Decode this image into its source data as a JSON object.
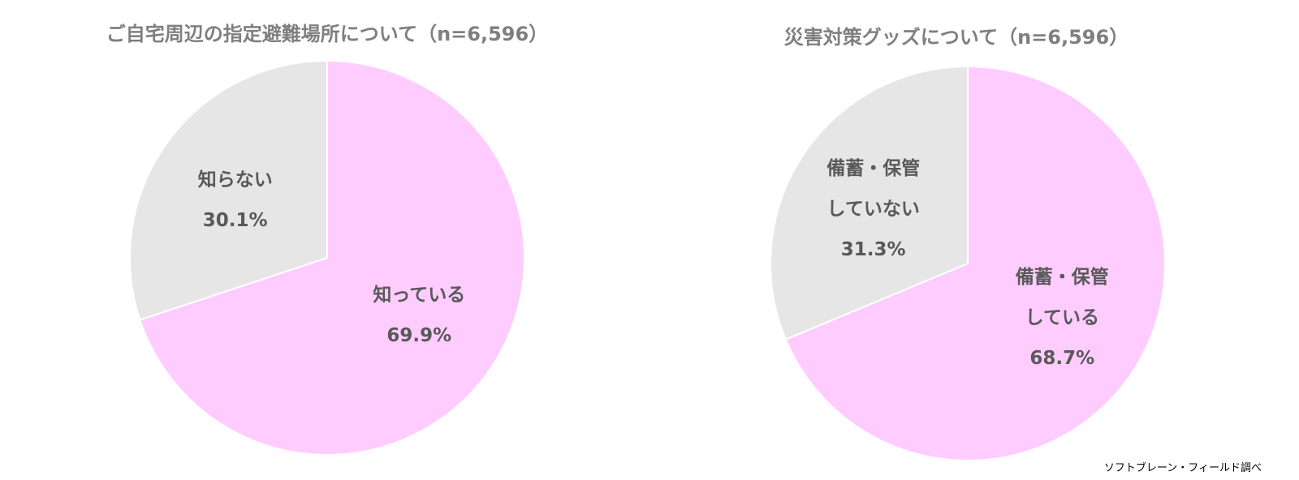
{
  "chart_data": [
    {
      "type": "pie",
      "title": "ご自宅周辺の指定避難場所について（n=6,596）",
      "categories": [
        "知っている",
        "知らない"
      ],
      "values": [
        69.9,
        30.1
      ],
      "value_labels": [
        "69.9%",
        "30.1%"
      ],
      "colors": [
        "#ffccff",
        "#e6e6e6"
      ]
    },
    {
      "type": "pie",
      "title": "災害対策グッズについて（n=6,596）",
      "categories": [
        "備蓄・保管\nしている",
        "備蓄・保管\nしていない"
      ],
      "values": [
        68.7,
        31.3
      ],
      "value_labels": [
        "68.7%",
        "31.3%"
      ],
      "colors": [
        "#ffccff",
        "#e6e6e6"
      ]
    }
  ],
  "source": "ソフトブレーン・フィールド調べ"
}
